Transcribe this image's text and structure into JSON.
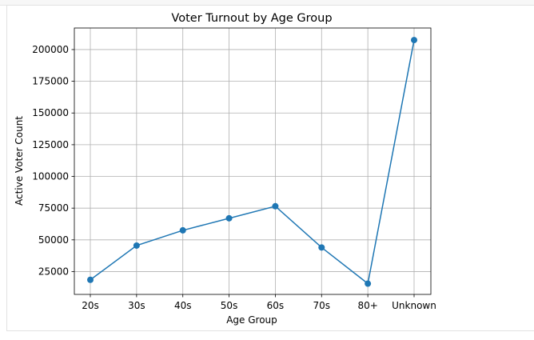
{
  "chart_data": {
    "type": "line",
    "title": "Voter Turnout by Age Group",
    "xlabel": "Age Group",
    "ylabel": "Active Voter Count",
    "categories": [
      "20s",
      "30s",
      "40s",
      "50s",
      "60s",
      "70s",
      "80+",
      "Unknown"
    ],
    "series": [
      {
        "values": [
          18500,
          45500,
          57500,
          67000,
          76500,
          44000,
          15500,
          207500
        ],
        "color": "#1f77b4",
        "marker": "circle"
      }
    ],
    "ylim": [
      7000,
      217000
    ],
    "yticks": [
      25000,
      50000,
      75000,
      100000,
      125000,
      150000,
      175000,
      200000
    ],
    "grid": true
  }
}
